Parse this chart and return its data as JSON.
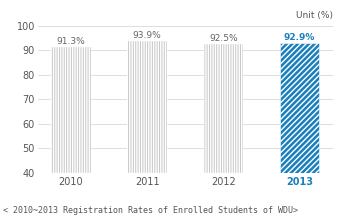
{
  "categories": [
    "2010",
    "2011",
    "2012",
    "2013"
  ],
  "values": [
    91.3,
    93.9,
    92.5,
    92.9
  ],
  "bar_colors": [
    "#c8c8c8",
    "#c8c8c8",
    "#c8c8c8",
    "#1a7fbd"
  ],
  "label_colors": [
    "#666666",
    "#666666",
    "#666666",
    "#1a7fbd"
  ],
  "xlabel_colors": [
    "#555555",
    "#555555",
    "#555555",
    "#1a7fbd"
  ],
  "labels": [
    "91.3%",
    "93.9%",
    "92.5%",
    "92.9%"
  ],
  "ylim": [
    40,
    100
  ],
  "yticks": [
    40,
    50,
    60,
    70,
    80,
    90,
    100
  ],
  "unit_text": "Unit (%)",
  "caption": "< 2010~2013 Registration Rates of Enrolled Students of WDU>",
  "background_color": "#ffffff",
  "hatch_gray": "|||||||",
  "hatch_blue": "//////"
}
